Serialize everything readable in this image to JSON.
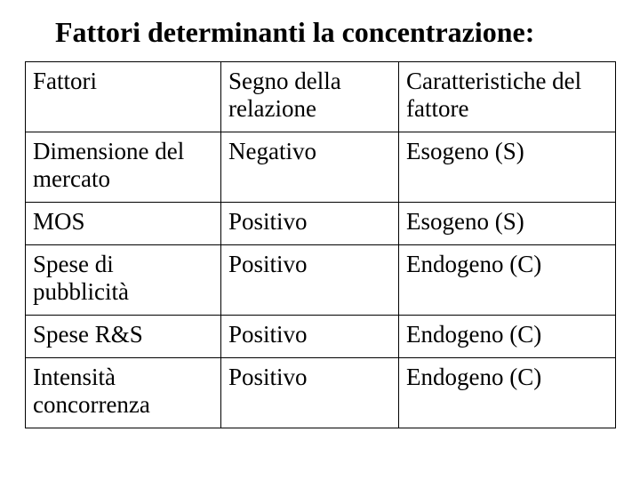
{
  "title": "Fattori determinanti la concentrazione:",
  "table": {
    "columns": [
      "Fattori",
      "Segno della relazione",
      "Caratteristiche del fattore"
    ],
    "rows": [
      [
        "Dimensione del mercato",
        "Negativo",
        "Esogeno (S)"
      ],
      [
        "MOS",
        "Positivo",
        "Esogeno (S)"
      ],
      [
        "Spese di pubblicità",
        "Positivo",
        "Endogeno (C)"
      ],
      [
        "Spese R&S",
        "Positivo",
        "Endogeno (C)"
      ],
      [
        "Intensità concorrenza",
        "Positivo",
        "Endogeno (C)"
      ]
    ],
    "border_color": "#000000",
    "background_color": "#ffffff",
    "text_color": "#000000",
    "title_fontsize": 32,
    "cell_fontsize": 27,
    "font_family": "Times New Roman"
  }
}
